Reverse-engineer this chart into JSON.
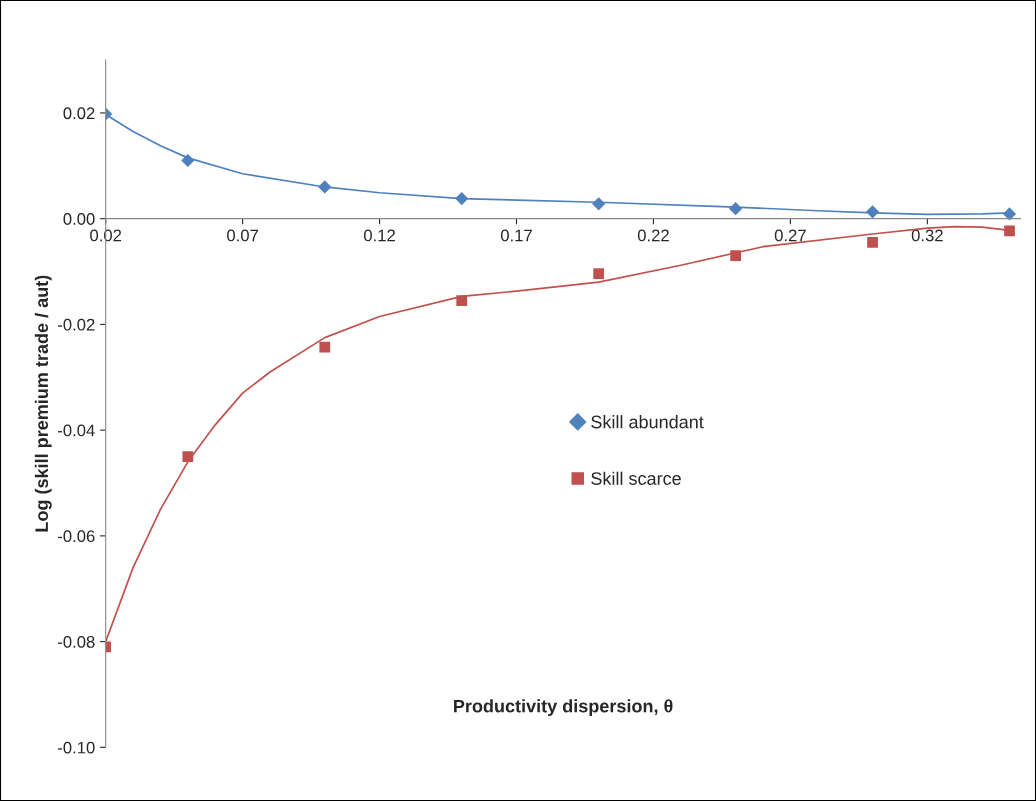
{
  "chart_data": {
    "type": "scatter",
    "xlabel": "Productivity dispersion, θ",
    "ylabel": "Log (skill premium trade / aut)",
    "xlim": [
      0.02,
      0.354
    ],
    "xticks": [
      0.02,
      0.07,
      0.12,
      0.17,
      0.22,
      0.27,
      0.32
    ],
    "ylim": [
      -0.1,
      0.03
    ],
    "yticks": [
      {
        "value": -0.1,
        "label": "-0.10"
      },
      -0.08,
      -0.06,
      -0.04,
      -0.02,
      {
        "value": 0,
        "label": "0.00"
      },
      0.02
    ],
    "grid": false,
    "legend": "center",
    "series": [
      {
        "name": "Skill abundant",
        "color": "#4f81bd",
        "marker": "diamond",
        "x": [
          0.02,
          0.05,
          0.1,
          0.15,
          0.2,
          0.25,
          0.3,
          0.35
        ],
        "values": [
          0.0198,
          0.011,
          0.006,
          0.0038,
          0.0028,
          0.0019,
          0.0013,
          0.0009
        ]
      },
      {
        "name": "Skill scarce",
        "color": "#c0504d",
        "marker": "square",
        "x": [
          0.02,
          0.05,
          0.1,
          0.15,
          0.2,
          0.25,
          0.3,
          0.35
        ],
        "values": [
          -0.081,
          -0.045,
          -0.0243,
          -0.0155,
          -0.0104,
          -0.007,
          -0.0045,
          -0.0023
        ]
      },
      {
        "type": "line",
        "color": "#4f81bd",
        "marker": "none",
        "x": [
          0.02,
          0.03,
          0.04,
          0.05,
          0.07,
          0.1,
          0.12,
          0.15,
          0.2,
          0.25,
          0.28,
          0.3,
          0.32,
          0.34,
          0.35
        ],
        "values": [
          0.0197,
          0.0165,
          0.0138,
          0.0115,
          0.0085,
          0.006,
          0.0049,
          0.0038,
          0.0031,
          0.0022,
          0.0015,
          0.0011,
          0.0008,
          0.0009,
          0.0011
        ]
      },
      {
        "type": "line",
        "color": "#c0504d",
        "marker": "none",
        "x": [
          0.02,
          0.03,
          0.04,
          0.05,
          0.06,
          0.07,
          0.08,
          0.1,
          0.12,
          0.15,
          0.17,
          0.2,
          0.23,
          0.26,
          0.3,
          0.32,
          0.33,
          0.34,
          0.35
        ],
        "values": [
          -0.08,
          -0.066,
          -0.055,
          -0.046,
          -0.039,
          -0.033,
          -0.029,
          -0.0225,
          -0.0185,
          -0.0147,
          -0.0137,
          -0.012,
          -0.0088,
          -0.0053,
          -0.0029,
          -0.0018,
          -0.0015,
          -0.0016,
          -0.0022
        ]
      }
    ]
  }
}
